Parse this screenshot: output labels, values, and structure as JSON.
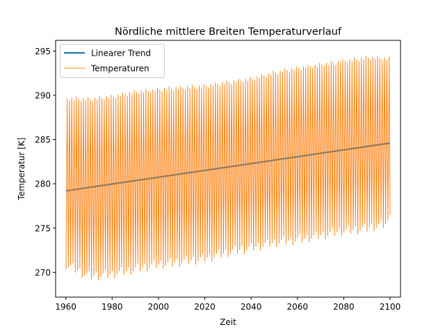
{
  "chart_data": {
    "type": "line",
    "title": "Nördliche mittlere Breiten Temperaturverlauf",
    "xlabel": "Zeit",
    "ylabel": "Temperatur [K]",
    "xlim": [
      1955.6,
      2104.5
    ],
    "ylim": [
      267.2,
      296.2
    ],
    "xticks": [
      1960,
      1980,
      2000,
      2020,
      2040,
      2060,
      2080,
      2100
    ],
    "yticks": [
      270,
      275,
      280,
      285,
      290,
      295
    ],
    "grid": false,
    "legend_position": "upper-left",
    "series": [
      {
        "name": "Linearer Trend",
        "color": "#1f77b4",
        "kind": "trend",
        "x": [
          1960,
          2100
        ],
        "y": [
          279.2,
          284.6
        ]
      },
      {
        "name": "Temperaturen",
        "color": "#ff7f0e",
        "kind": "seasonal-cycle",
        "x_start": 1960,
        "x_end": 2100,
        "anchor_years": [
          1960,
          1970,
          1980,
          1990,
          2000,
          2010,
          2020,
          2030,
          2040,
          2050,
          2060,
          2070,
          2080,
          2090,
          2100
        ],
        "annual_max_K": [
          289.6,
          289.5,
          289.8,
          290.3,
          290.6,
          290.8,
          291.0,
          291.4,
          291.8,
          292.5,
          293.0,
          293.4,
          293.8,
          294.2,
          294.1
        ],
        "annual_min_K": [
          270.9,
          269.6,
          269.8,
          270.4,
          270.9,
          271.2,
          271.6,
          272.3,
          272.8,
          273.4,
          273.7,
          274.2,
          274.7,
          275.0,
          275.6
        ]
      }
    ]
  }
}
